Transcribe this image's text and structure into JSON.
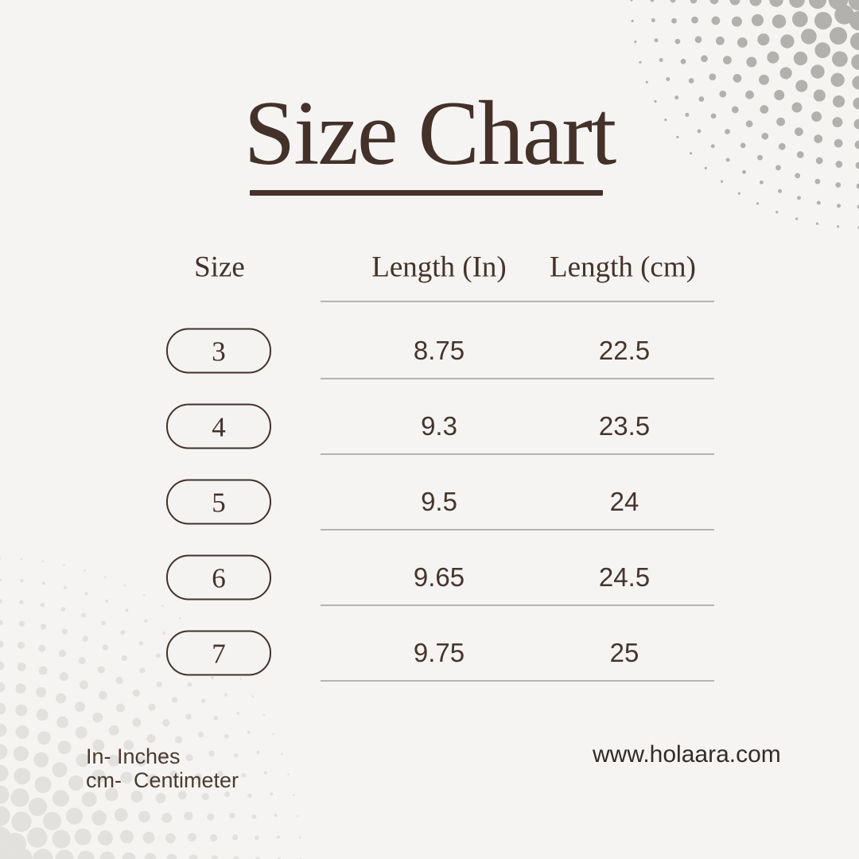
{
  "title": {
    "text": "Size Chart"
  },
  "chart_data": {
    "type": "table",
    "title": "Size Chart",
    "columns": [
      "Size",
      "Length (In)",
      "Length (cm)"
    ],
    "rows": [
      [
        "3",
        "8.75",
        "22.5"
      ],
      [
        "4",
        "9.3",
        "23.5"
      ],
      [
        "5",
        "9.5",
        "24"
      ],
      [
        "6",
        "9.65",
        "24.5"
      ],
      [
        "7",
        "9.75",
        "25"
      ]
    ],
    "notes": "Size pills are rounded outlined badges; dividing rules under header and each row"
  },
  "footer": {
    "legend_line1": "In- Inches",
    "legend_line2": "cm-  Centimeter",
    "website": "www.holaara.com"
  },
  "colors": {
    "background": "#f5f4f2",
    "accent_brown": "#43312a",
    "rule_gray": "#b4b3b1",
    "halftone_top_right": "#b2b1ae",
    "halftone_bottom_left": "#e2e1de"
  }
}
